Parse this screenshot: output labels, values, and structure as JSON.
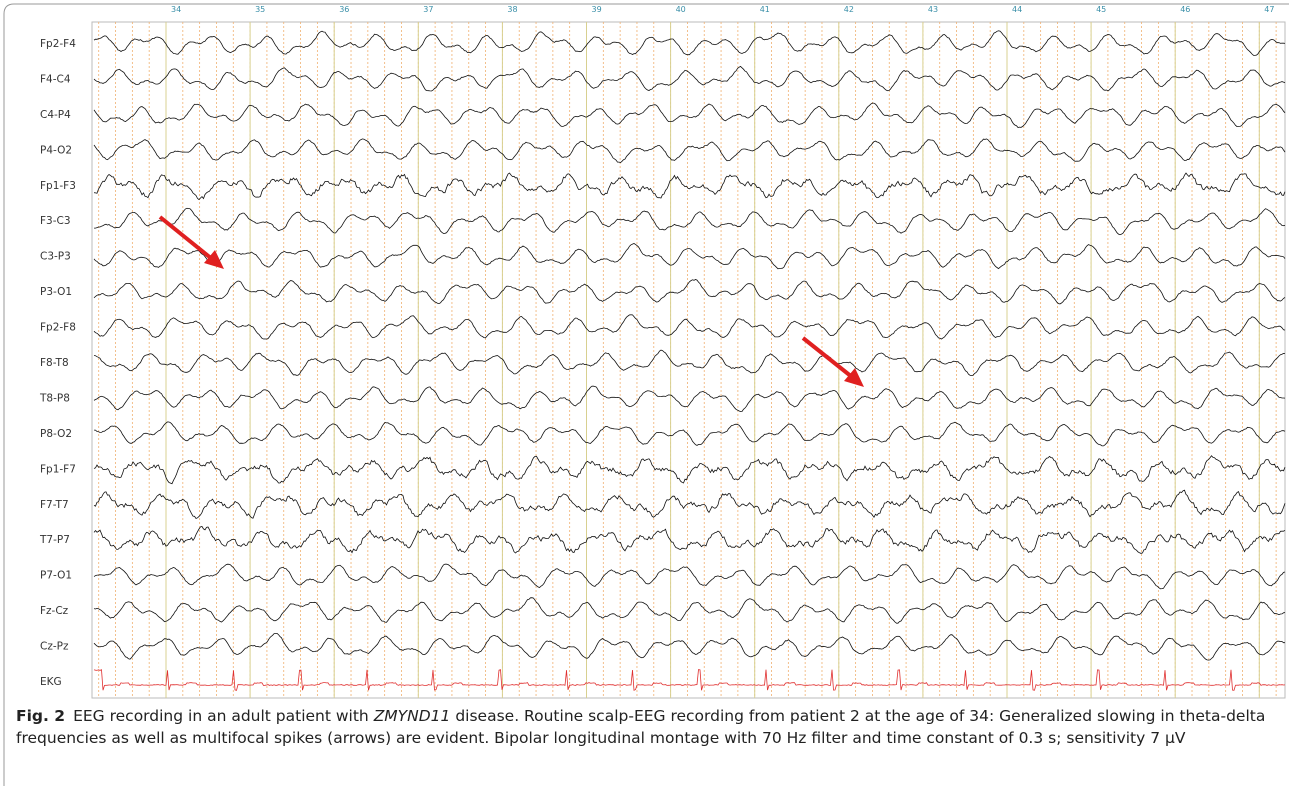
{
  "figure": {
    "time_markers": [
      "34",
      "35",
      "36",
      "37",
      "38",
      "39",
      "40",
      "41",
      "42",
      "43",
      "44",
      "45",
      "46",
      "47"
    ],
    "channels": [
      "Fp2-F4",
      "F4-C4",
      "C4-P4",
      "P4-O2",
      "Fp1-F3",
      "F3-C3",
      "C3-P3",
      "P3-O1",
      "Fp2-F8",
      "F8-T8",
      "T8-P8",
      "P8-O2",
      "Fp1-F7",
      "F7-T7",
      "T7-P7",
      "P7-O1",
      "Fz-Cz",
      "Cz-Pz",
      "EKG"
    ],
    "caption": {
      "label": "Fig. 2",
      "before": "EEG recording in an adult patient with ",
      "gene": "ZMYND11",
      "after": " disease. Routine scalp-EEG recording from patient 2 at the age of 34: Generalized slowing in theta-delta frequencies as well as multifocal spikes (arrows) are evident. Bipolar longitudinal montage with 70 Hz filter and time constant of 0.3 s; sensitivity 7 µV"
    }
  }
}
